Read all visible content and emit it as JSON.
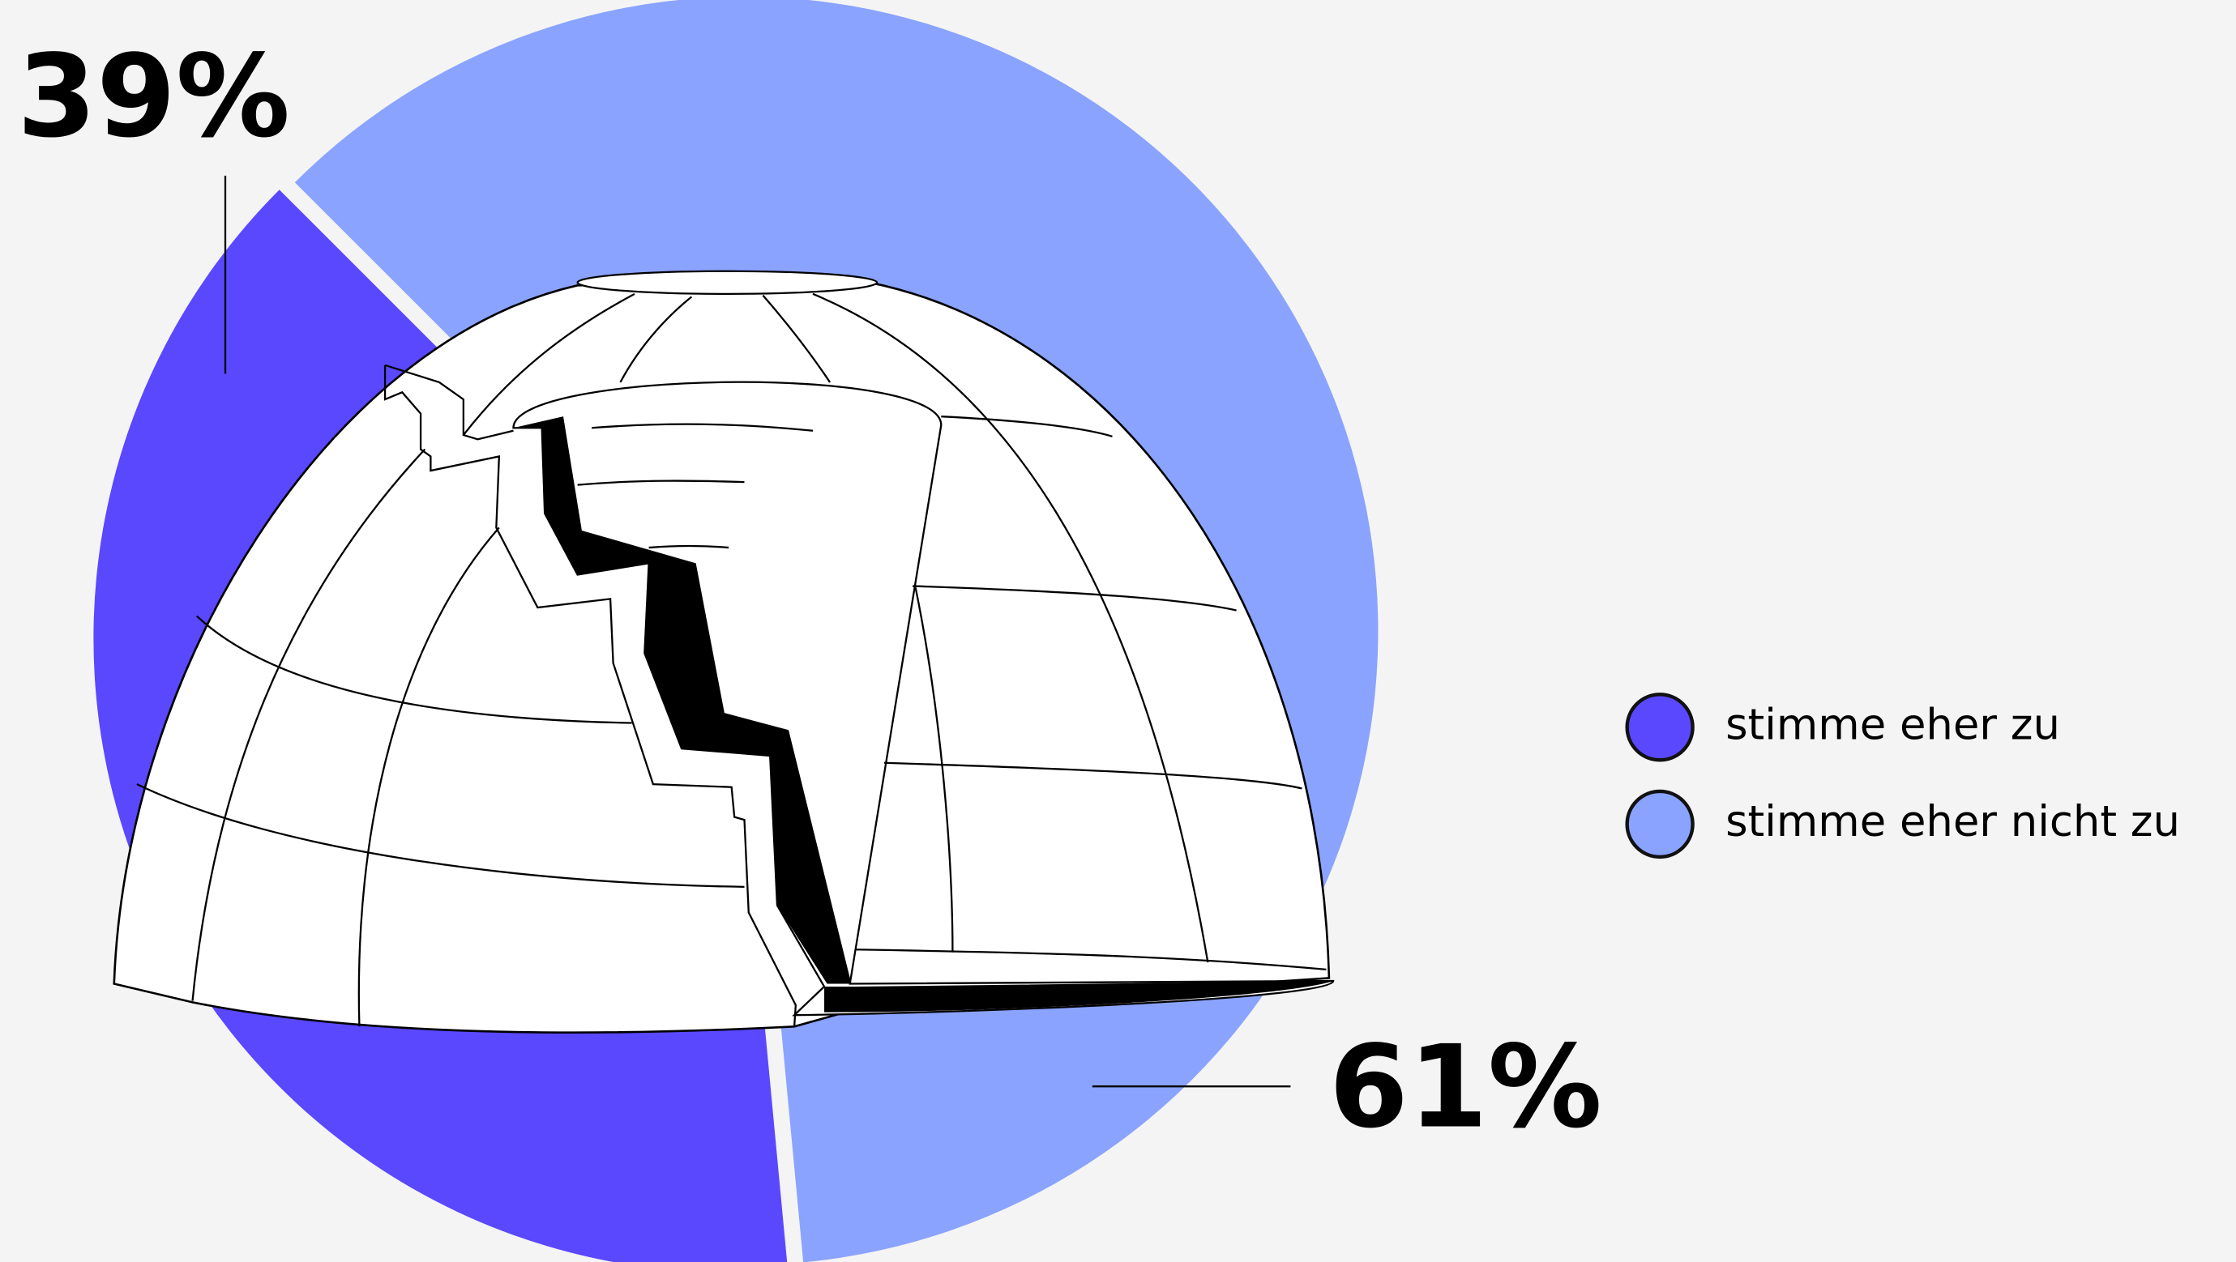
{
  "chart_data": {
    "type": "pie",
    "categories": [
      "stimme eher zu",
      "stimme eher nicht zu"
    ],
    "values": [
      39,
      61
    ],
    "value_labels": [
      "39%",
      "61%"
    ],
    "colors": [
      "#5a48ff",
      "#8aa3ff"
    ],
    "legend": "right"
  }
}
